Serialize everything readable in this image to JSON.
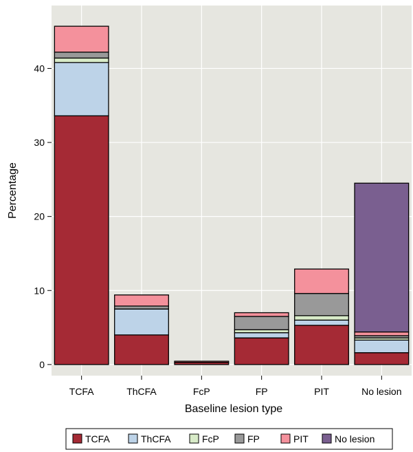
{
  "chart_data": {
    "type": "bar",
    "stacked": true,
    "title": "",
    "xlabel": "Baseline lesion type",
    "ylabel": "Percentage",
    "ylim": [
      -1.5,
      48.5
    ],
    "yticks": [
      0,
      10,
      20,
      30,
      40
    ],
    "grid": true,
    "legend_position": "bottom",
    "categories": [
      "TCFA",
      "ThCFA",
      "FcP",
      "FP",
      "PIT",
      "No lesion"
    ],
    "series": [
      {
        "name": "TCFA",
        "color": "#a52a35",
        "values": [
          33.6,
          4.0,
          0.3,
          3.6,
          5.3,
          1.6
        ]
      },
      {
        "name": "ThCFA",
        "color": "#bdd3e8",
        "values": [
          7.2,
          3.5,
          0.0,
          0.7,
          0.7,
          1.7
        ]
      },
      {
        "name": "FcP",
        "color": "#d8ebc8",
        "values": [
          0.6,
          0.0,
          0.0,
          0.4,
          0.6,
          0.3
        ]
      },
      {
        "name": "FP",
        "color": "#999999",
        "values": [
          0.8,
          0.4,
          0.0,
          1.8,
          3.0,
          0.3
        ]
      },
      {
        "name": "PIT",
        "color": "#f4919c",
        "values": [
          3.5,
          1.5,
          0.15,
          0.5,
          3.3,
          0.5
        ]
      },
      {
        "name": "No lesion",
        "color": "#7a5f90",
        "values": [
          0.0,
          0.0,
          0.0,
          0.0,
          0.0,
          20.1
        ]
      }
    ]
  }
}
